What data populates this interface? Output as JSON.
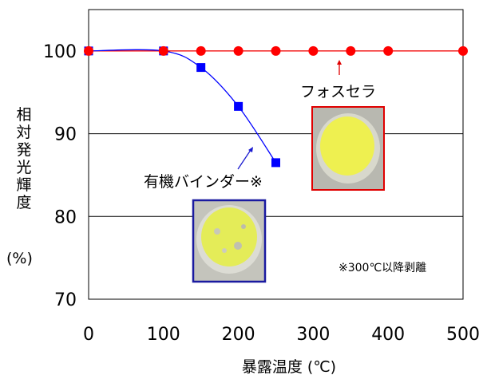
{
  "chart_data": {
    "type": "line",
    "x": [
      0,
      100,
      150,
      200,
      250,
      300,
      350,
      400,
      500
    ],
    "xlim": [
      0,
      500
    ],
    "ylim": [
      70,
      105
    ],
    "x_ticks": [
      "0",
      "100",
      "200",
      "300",
      "400",
      "500"
    ],
    "y_ticks": [
      "70",
      "80",
      "90",
      "100"
    ],
    "xlabel": "暴露温度 (℃)",
    "ylabel": "相対発光輝度",
    "ylabel_unit": "(%)",
    "grid": true,
    "series": [
      {
        "name": "フォスセラ",
        "color": "#ff0000",
        "marker": "circle",
        "x": [
          0,
          100,
          150,
          200,
          250,
          300,
          350,
          400,
          500
        ],
        "values": [
          100,
          100,
          100,
          100,
          100,
          100,
          100,
          100,
          100
        ]
      },
      {
        "name": "有機バインダー※",
        "color": "#0000ff",
        "marker": "square",
        "x": [
          0,
          100,
          150,
          200,
          250
        ],
        "values": [
          100,
          100,
          98,
          93.3,
          86.5
        ]
      }
    ],
    "annotations": {
      "footnote": "※300℃以降剥離"
    }
  }
}
